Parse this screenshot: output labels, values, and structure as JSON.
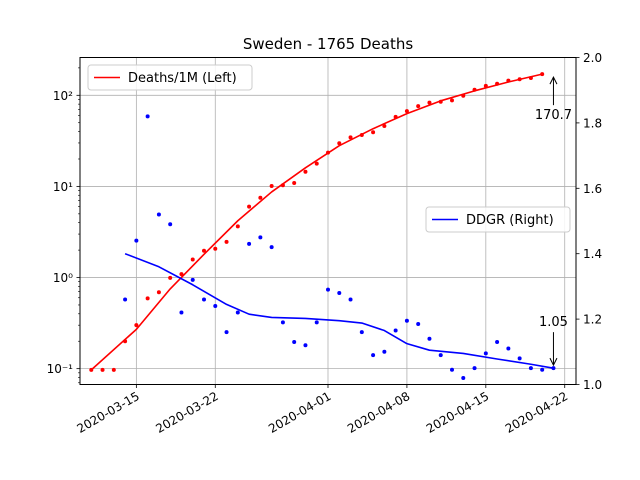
{
  "chart_data": {
    "type": "line",
    "title": "Sweden - 1765 Deaths",
    "x_axis": {
      "type": "date",
      "range": [
        "2020-03-10",
        "2020-04-23"
      ],
      "ticks": [
        "2020-03-15",
        "2020-03-22",
        "2020-04-01",
        "2020-04-08",
        "2020-04-15",
        "2020-04-22"
      ],
      "grid": true
    },
    "y_left": {
      "scale": "log",
      "range": [
        0.067,
        260
      ],
      "ticks": [
        0.1,
        1,
        10,
        100
      ],
      "tick_labels": [
        "10⁻¹",
        "10⁰",
        "10¹",
        "10²"
      ],
      "grid": true
    },
    "y_right": {
      "scale": "linear",
      "range": [
        1.0,
        2.0
      ],
      "ticks": [
        1.0,
        1.2,
        1.4,
        1.6,
        1.8,
        2.0
      ],
      "tick_labels": [
        "1.0",
        "1.2",
        "1.4",
        "1.6",
        "1.8",
        "2.0"
      ]
    },
    "series": [
      {
        "name": "Deaths/1M (Left)",
        "color": "#ff0000",
        "axis": "left",
        "points": [
          [
            "2020-03-11",
            0.097
          ],
          [
            "2020-03-12",
            0.097
          ],
          [
            "2020-03-13",
            0.097
          ],
          [
            "2020-03-14",
            0.2
          ],
          [
            "2020-03-15",
            0.3
          ],
          [
            "2020-03-16",
            0.59
          ],
          [
            "2020-03-17",
            0.69
          ],
          [
            "2020-03-18",
            0.99
          ],
          [
            "2020-03-19",
            1.09
          ],
          [
            "2020-03-20",
            1.58
          ],
          [
            "2020-03-21",
            1.97
          ],
          [
            "2020-03-22",
            2.07
          ],
          [
            "2020-03-23",
            2.46
          ],
          [
            "2020-03-24",
            3.64
          ],
          [
            "2020-03-25",
            6.0
          ],
          [
            "2020-03-26",
            7.5
          ],
          [
            "2020-03-27",
            10.1
          ],
          [
            "2020-03-28",
            10.3
          ],
          [
            "2020-03-29",
            10.9
          ],
          [
            "2020-03-30",
            14.5
          ],
          [
            "2020-03-31",
            17.8
          ],
          [
            "2020-04-01",
            23.5
          ],
          [
            "2020-04-02",
            29.8
          ],
          [
            "2020-04-03",
            34.5
          ],
          [
            "2020-04-04",
            36.7
          ],
          [
            "2020-04-05",
            39.3
          ],
          [
            "2020-04-06",
            46.0
          ],
          [
            "2020-04-07",
            58.0
          ],
          [
            "2020-04-08",
            67.0
          ],
          [
            "2020-04-09",
            76.0
          ],
          [
            "2020-04-10",
            83.0
          ],
          [
            "2020-04-11",
            85.0
          ],
          [
            "2020-04-12",
            88.0
          ],
          [
            "2020-04-13",
            99.0
          ],
          [
            "2020-04-14",
            115.0
          ],
          [
            "2020-04-15",
            127.0
          ],
          [
            "2020-04-16",
            134.0
          ],
          [
            "2020-04-17",
            145.0
          ],
          [
            "2020-04-18",
            150.0
          ],
          [
            "2020-04-19",
            155.0
          ],
          [
            "2020-04-20",
            170.7
          ]
        ],
        "trend": [
          [
            "2020-03-11",
            0.097
          ],
          [
            "2020-03-15",
            0.27
          ],
          [
            "2020-03-18",
            0.75
          ],
          [
            "2020-03-21",
            1.8
          ],
          [
            "2020-03-24",
            4.2
          ],
          [
            "2020-03-27",
            8.7
          ],
          [
            "2020-03-30",
            16.0
          ],
          [
            "2020-04-02",
            28.0
          ],
          [
            "2020-04-05",
            43.0
          ],
          [
            "2020-04-08",
            63.0
          ],
          [
            "2020-04-11",
            87.0
          ],
          [
            "2020-04-14",
            112.0
          ],
          [
            "2020-04-17",
            140.0
          ],
          [
            "2020-04-20",
            170.7
          ]
        ]
      },
      {
        "name": "DDGR (Right)",
        "color": "#0000ff",
        "axis": "right",
        "points": [
          [
            "2020-03-14",
            1.26
          ],
          [
            "2020-03-15",
            1.44
          ],
          [
            "2020-03-16",
            1.82
          ],
          [
            "2020-03-17",
            1.52
          ],
          [
            "2020-03-18",
            1.49
          ],
          [
            "2020-03-19",
            1.22
          ],
          [
            "2020-03-20",
            1.32
          ],
          [
            "2020-03-21",
            1.26
          ],
          [
            "2020-03-22",
            1.24
          ],
          [
            "2020-03-23",
            1.16
          ],
          [
            "2020-03-24",
            1.22
          ],
          [
            "2020-03-25",
            1.43
          ],
          [
            "2020-03-26",
            1.45
          ],
          [
            "2020-03-27",
            1.42
          ],
          [
            "2020-03-28",
            1.19
          ],
          [
            "2020-03-29",
            1.13
          ],
          [
            "2020-03-30",
            1.12
          ],
          [
            "2020-03-31",
            1.19
          ],
          [
            "2020-04-01",
            1.29
          ],
          [
            "2020-04-02",
            1.28
          ],
          [
            "2020-04-03",
            1.26
          ],
          [
            "2020-04-04",
            1.16
          ],
          [
            "2020-04-05",
            1.09
          ],
          [
            "2020-04-06",
            1.1
          ],
          [
            "2020-04-07",
            1.165
          ],
          [
            "2020-04-08",
            1.195
          ],
          [
            "2020-04-09",
            1.185
          ],
          [
            "2020-04-10",
            1.14
          ],
          [
            "2020-04-11",
            1.09
          ],
          [
            "2020-04-12",
            1.045
          ],
          [
            "2020-04-13",
            1.02
          ],
          [
            "2020-04-14",
            1.05
          ],
          [
            "2020-04-15",
            1.095
          ],
          [
            "2020-04-16",
            1.13
          ],
          [
            "2020-04-17",
            1.11
          ],
          [
            "2020-04-18",
            1.08
          ],
          [
            "2020-04-19",
            1.05
          ],
          [
            "2020-04-20",
            1.045
          ],
          [
            "2020-04-21",
            1.05
          ]
        ],
        "trend": [
          [
            "2020-03-14",
            1.4
          ],
          [
            "2020-03-17",
            1.36
          ],
          [
            "2020-03-20",
            1.305
          ],
          [
            "2020-03-23",
            1.245
          ],
          [
            "2020-03-25",
            1.215
          ],
          [
            "2020-03-27",
            1.205
          ],
          [
            "2020-03-30",
            1.202
          ],
          [
            "2020-04-02",
            1.195
          ],
          [
            "2020-04-04",
            1.188
          ],
          [
            "2020-04-06",
            1.165
          ],
          [
            "2020-04-08",
            1.125
          ],
          [
            "2020-04-10",
            1.105
          ],
          [
            "2020-04-13",
            1.095
          ],
          [
            "2020-04-16",
            1.078
          ],
          [
            "2020-04-19",
            1.062
          ],
          [
            "2020-04-21",
            1.05
          ]
        ]
      }
    ],
    "annotations": [
      {
        "text": "170.7",
        "series": "Deaths/1M (Left)",
        "x": "2020-04-21",
        "y": 170.7
      },
      {
        "text": "1.05",
        "series": "DDGR (Right)",
        "x": "2020-04-21",
        "y": 1.05
      }
    ],
    "legends": [
      {
        "series": "Deaths/1M (Left)",
        "placement": "upper-left"
      },
      {
        "series": "DDGR (Right)",
        "placement": "center-right"
      }
    ]
  }
}
